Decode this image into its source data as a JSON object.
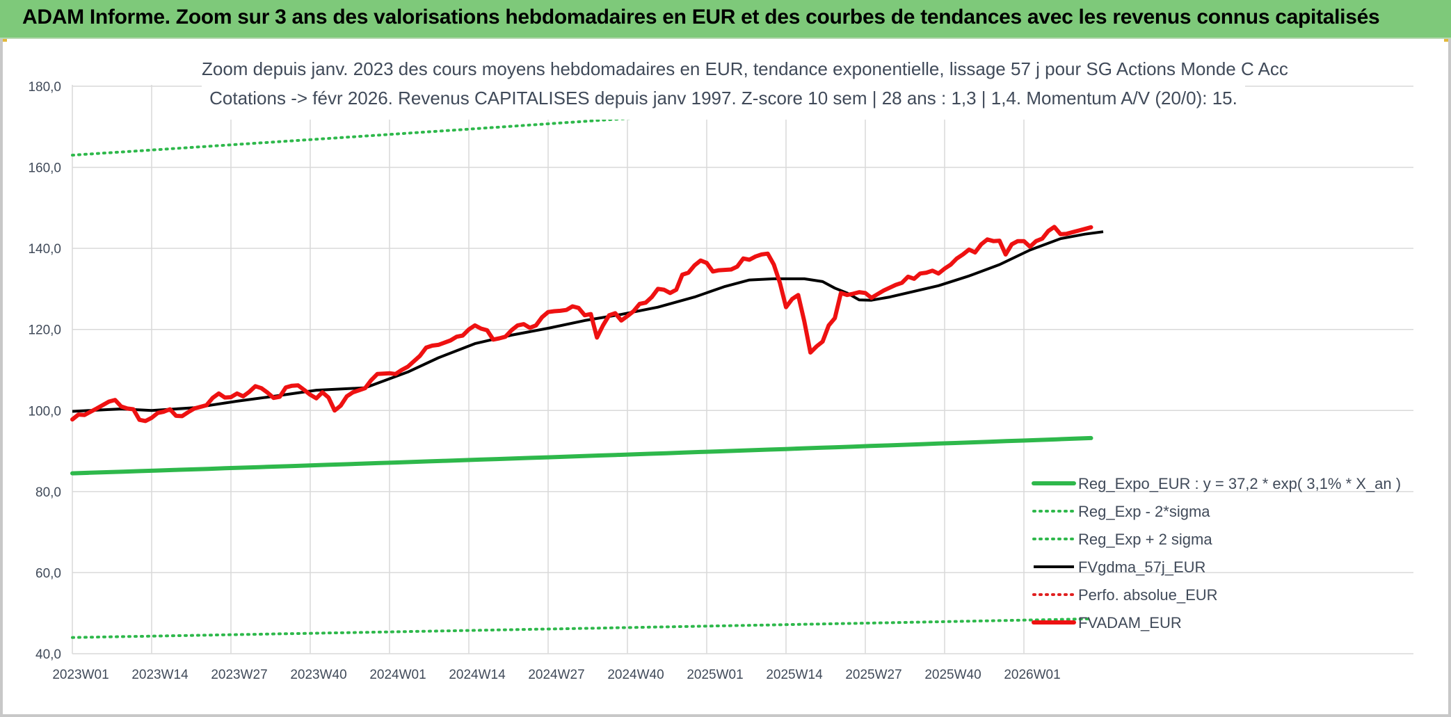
{
  "banner": {
    "title": "ADAM Informe. Zoom sur 3 ans des valorisations hebdomadaires en EUR et des courbes de tendances avec les revenus connus capitalisés"
  },
  "chart_data": {
    "type": "line",
    "title": "Zoom depuis janv. 2023 des cours moyens hebdomadaires en EUR, tendance exponentielle, lissage 57 j pour SG Actions Monde C Acc",
    "subtitle": "Cotations -> févr 2026. Revenus CAPITALISES depuis janv 1997. Z-score 10 sem | 28 ans : 1,3 | 1,4. Momentum A/V (20/0): 15.",
    "xlabel": "",
    "ylabel": "",
    "ylim": [
      40,
      180
    ],
    "yticks": [
      "40,0",
      "60,0",
      "80,0",
      "100,0",
      "120,0",
      "140,0",
      "160,0",
      "180,0"
    ],
    "xticks": [
      "2023W01",
      "2023W14",
      "2023W27",
      "2023W40",
      "2024W01",
      "2024W14",
      "2024W27",
      "2024W40",
      "2025W01",
      "2025W14",
      "2025W27",
      "2025W40",
      "2026W01"
    ],
    "x_range_weeks": [
      0,
      164
    ],
    "grid": true,
    "legend_position": "bottom-right",
    "series": [
      {
        "name": "Reg_Expo_EUR : y = 37,2 * exp( 3,1% *  X_an )",
        "color": "#2eb84b",
        "style": "solid-thick",
        "start": 84.5,
        "end": 93.2
      },
      {
        "name": "Reg_Exp - 2*sigma",
        "color": "#2eb84b",
        "style": "dotted",
        "start": 44.0,
        "end": 48.6
      },
      {
        "name": "Reg_Exp + 2 sigma",
        "color": "#2eb84b",
        "style": "dotted",
        "start": 163.0,
        "end": 180.0
      },
      {
        "name": "FVgdma_57j_EUR",
        "color": "#000000",
        "style": "solid",
        "points": [
          [
            0,
            99.8
          ],
          [
            8,
            100.4
          ],
          [
            13,
            100.0
          ],
          [
            20,
            100.7
          ],
          [
            27,
            102.3
          ],
          [
            33,
            103.5
          ],
          [
            40,
            105.0
          ],
          [
            48,
            105.6
          ],
          [
            55,
            109.5
          ],
          [
            60,
            113.0
          ],
          [
            66,
            116.5
          ],
          [
            72,
            118.6
          ],
          [
            78,
            120.3
          ],
          [
            84,
            122.2
          ],
          [
            90,
            123.7
          ],
          [
            96,
            125.5
          ],
          [
            102,
            128.0
          ],
          [
            107,
            130.6
          ],
          [
            111,
            132.2
          ],
          [
            115,
            132.5
          ],
          [
            120,
            132.5
          ],
          [
            123,
            131.8
          ],
          [
            125,
            130.2
          ],
          [
            127,
            129.0
          ],
          [
            129,
            127.3
          ],
          [
            131,
            127.2
          ],
          [
            134,
            128.0
          ],
          [
            138,
            129.4
          ],
          [
            142,
            130.8
          ],
          [
            147,
            133.2
          ],
          [
            152,
            136.0
          ],
          [
            157,
            139.6
          ],
          [
            162,
            142.4
          ],
          [
            166,
            143.5
          ],
          [
            169,
            144.1
          ]
        ]
      },
      {
        "name": "Perfo. absolue_EUR",
        "color": "#e02020",
        "style": "dotted",
        "points": []
      },
      {
        "name": "FVADAM_EUR",
        "color": "#ee1111",
        "style": "solid-thick",
        "points": [
          [
            0,
            97.8
          ],
          [
            1,
            99.0
          ],
          [
            2,
            98.9
          ],
          [
            4,
            100.5
          ],
          [
            6,
            102.2
          ],
          [
            7,
            102.6
          ],
          [
            8,
            101.0
          ],
          [
            9,
            100.5
          ],
          [
            10,
            100.3
          ],
          [
            11,
            97.7
          ],
          [
            12,
            97.4
          ],
          [
            13,
            98.2
          ],
          [
            14,
            99.4
          ],
          [
            15,
            99.7
          ],
          [
            16,
            100.3
          ],
          [
            17,
            98.7
          ],
          [
            18,
            98.6
          ],
          [
            19,
            99.6
          ],
          [
            20,
            100.5
          ],
          [
            22,
            101.3
          ],
          [
            23,
            103.1
          ],
          [
            24,
            104.2
          ],
          [
            25,
            103.2
          ],
          [
            26,
            103.3
          ],
          [
            27,
            104.2
          ],
          [
            28,
            103.5
          ],
          [
            29,
            104.6
          ],
          [
            30,
            106.0
          ],
          [
            31,
            105.5
          ],
          [
            32,
            104.4
          ],
          [
            33,
            103.1
          ],
          [
            34,
            103.4
          ],
          [
            35,
            105.7
          ],
          [
            36,
            106.1
          ],
          [
            37,
            106.2
          ],
          [
            38,
            105.1
          ],
          [
            39,
            103.9
          ],
          [
            40,
            103.0
          ],
          [
            41,
            104.5
          ],
          [
            42,
            103.2
          ],
          [
            43,
            100.0
          ],
          [
            44,
            101.2
          ],
          [
            45,
            103.5
          ],
          [
            46,
            104.5
          ],
          [
            47,
            105.0
          ],
          [
            48,
            105.5
          ],
          [
            49,
            107.5
          ],
          [
            50,
            109.0
          ],
          [
            52,
            109.2
          ],
          [
            53,
            109.0
          ],
          [
            54,
            110.0
          ],
          [
            55,
            110.8
          ],
          [
            57,
            113.5
          ],
          [
            58,
            115.5
          ],
          [
            59,
            116.0
          ],
          [
            60,
            116.2
          ],
          [
            62,
            117.3
          ],
          [
            63,
            118.2
          ],
          [
            64,
            118.5
          ],
          [
            65,
            120.0
          ],
          [
            66,
            121.0
          ],
          [
            67,
            120.2
          ],
          [
            68,
            119.8
          ],
          [
            69,
            117.5
          ],
          [
            70,
            117.8
          ],
          [
            71,
            118.2
          ],
          [
            72,
            119.8
          ],
          [
            73,
            121.0
          ],
          [
            74,
            121.3
          ],
          [
            75,
            120.4
          ],
          [
            76,
            121.0
          ],
          [
            77,
            123.0
          ],
          [
            78,
            124.3
          ],
          [
            79,
            124.5
          ],
          [
            80,
            124.6
          ],
          [
            81,
            124.8
          ],
          [
            82,
            125.7
          ],
          [
            83,
            125.3
          ],
          [
            84,
            123.5
          ],
          [
            85,
            123.8
          ],
          [
            86,
            118.0
          ],
          [
            87,
            121.0
          ],
          [
            88,
            123.5
          ],
          [
            89,
            124.0
          ],
          [
            90,
            122.2
          ],
          [
            91,
            123.3
          ],
          [
            92,
            124.5
          ],
          [
            93,
            126.3
          ],
          [
            94,
            126.6
          ],
          [
            95,
            128.0
          ],
          [
            96,
            130.0
          ],
          [
            97,
            129.8
          ],
          [
            98,
            129.0
          ],
          [
            99,
            129.8
          ],
          [
            100,
            133.5
          ],
          [
            101,
            134.0
          ],
          [
            102,
            135.8
          ],
          [
            103,
            137.0
          ],
          [
            104,
            136.4
          ],
          [
            105,
            134.3
          ],
          [
            106,
            134.6
          ],
          [
            108,
            134.8
          ],
          [
            109,
            135.5
          ],
          [
            110,
            137.5
          ],
          [
            111,
            137.2
          ],
          [
            112,
            138.0
          ],
          [
            113,
            138.5
          ],
          [
            114,
            138.7
          ],
          [
            115,
            136.0
          ],
          [
            116,
            131.5
          ],
          [
            117,
            125.5
          ],
          [
            118,
            127.5
          ],
          [
            119,
            128.5
          ],
          [
            120,
            122.0
          ],
          [
            121,
            114.3
          ],
          [
            122,
            115.8
          ],
          [
            123,
            117.0
          ],
          [
            124,
            121.0
          ],
          [
            125,
            122.8
          ],
          [
            126,
            129.0
          ],
          [
            127,
            128.5
          ],
          [
            128,
            128.8
          ],
          [
            129,
            129.2
          ],
          [
            130,
            129.0
          ],
          [
            131,
            127.8
          ],
          [
            132,
            128.7
          ],
          [
            133,
            129.6
          ],
          [
            134,
            130.3
          ],
          [
            135,
            131.0
          ],
          [
            136,
            131.5
          ],
          [
            137,
            133.0
          ],
          [
            138,
            132.5
          ],
          [
            139,
            133.8
          ],
          [
            140,
            134.0
          ],
          [
            141,
            134.5
          ],
          [
            142,
            133.8
          ],
          [
            143,
            135.0
          ],
          [
            144,
            136.0
          ],
          [
            145,
            137.5
          ],
          [
            146,
            138.5
          ],
          [
            147,
            139.7
          ],
          [
            148,
            139.0
          ],
          [
            149,
            141.0
          ],
          [
            150,
            142.2
          ],
          [
            151,
            141.8
          ],
          [
            152,
            141.9
          ],
          [
            153,
            138.5
          ],
          [
            154,
            141.0
          ],
          [
            155,
            141.8
          ],
          [
            156,
            141.8
          ],
          [
            157,
            140.4
          ],
          [
            158,
            141.8
          ],
          [
            159,
            142.4
          ],
          [
            160,
            144.3
          ],
          [
            161,
            145.3
          ],
          [
            162,
            143.5
          ],
          [
            163,
            143.6
          ],
          [
            164,
            144.0
          ],
          [
            165,
            144.4
          ],
          [
            166,
            144.8
          ],
          [
            167,
            145.2
          ]
        ]
      }
    ]
  }
}
